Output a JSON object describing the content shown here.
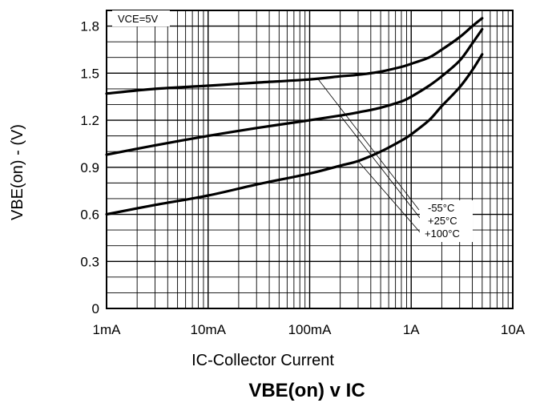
{
  "chart_data": {
    "type": "line",
    "title_main": "VBE(on) v IC",
    "xlabel": "IC-Collector Current",
    "ylabel": "VBE(on) - (V)",
    "x_scale": "log",
    "xlim": [
      0.001,
      10
    ],
    "ylim": [
      0,
      1.9
    ],
    "x_ticks": [
      0.001,
      0.01,
      0.1,
      1,
      10
    ],
    "x_tick_labels": [
      "1mA",
      "10mA",
      "100mA",
      "1A",
      "10A"
    ],
    "y_ticks": [
      0,
      0.3,
      0.6,
      0.9,
      1.2,
      1.5,
      1.8
    ],
    "y_tick_labels": [
      "0",
      "0.3",
      "0.6",
      "0.9",
      "1.2",
      "1.5",
      "1.8"
    ],
    "grid": true,
    "annotation": "VCE=5V",
    "series": [
      {
        "name": "-55°C",
        "x": [
          0.001,
          0.003,
          0.01,
          0.03,
          0.1,
          0.2,
          0.3,
          0.5,
          0.8,
          1,
          1.5,
          2,
          3,
          4,
          5
        ],
        "y": [
          1.37,
          1.4,
          1.42,
          1.44,
          1.46,
          1.48,
          1.49,
          1.51,
          1.54,
          1.56,
          1.6,
          1.65,
          1.73,
          1.8,
          1.85
        ]
      },
      {
        "name": "+25°C",
        "x": [
          0.001,
          0.003,
          0.01,
          0.03,
          0.1,
          0.2,
          0.3,
          0.5,
          0.8,
          1,
          1.5,
          2,
          3,
          4,
          5
        ],
        "y": [
          0.98,
          1.04,
          1.1,
          1.15,
          1.2,
          1.23,
          1.25,
          1.28,
          1.32,
          1.35,
          1.42,
          1.48,
          1.58,
          1.69,
          1.78
        ]
      },
      {
        "name": "+100°C",
        "x": [
          0.001,
          0.003,
          0.01,
          0.03,
          0.1,
          0.2,
          0.3,
          0.5,
          0.8,
          1,
          1.5,
          2,
          3,
          4,
          5
        ],
        "y": [
          0.6,
          0.66,
          0.72,
          0.79,
          0.86,
          0.91,
          0.94,
          1.0,
          1.07,
          1.11,
          1.2,
          1.29,
          1.41,
          1.52,
          1.62
        ]
      }
    ]
  }
}
